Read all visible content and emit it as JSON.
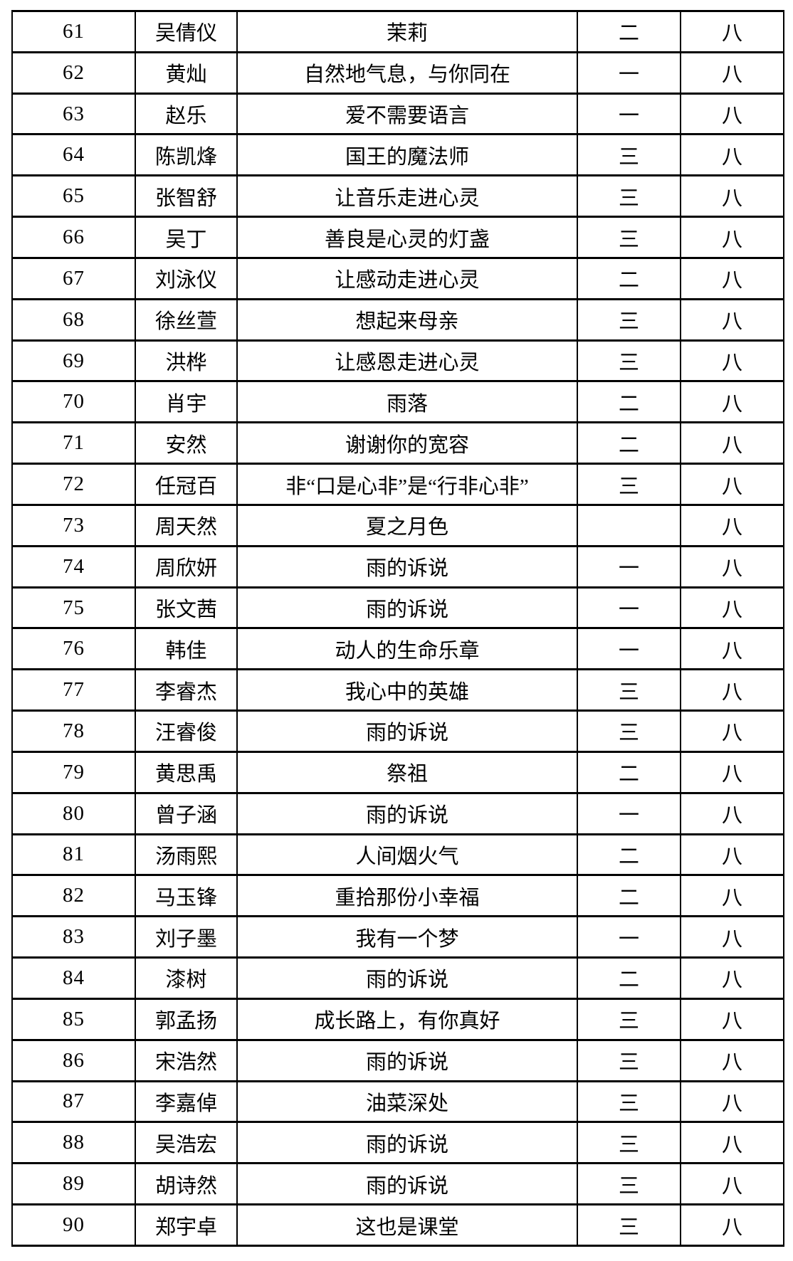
{
  "table": {
    "rows": [
      {
        "no": "61",
        "name": "吴倩仪",
        "title": "茉莉",
        "class_group": "二",
        "grade": "八"
      },
      {
        "no": "62",
        "name": "黄灿",
        "title": "自然地气息，与你同在",
        "class_group": "一",
        "grade": "八"
      },
      {
        "no": "63",
        "name": "赵乐",
        "title": "爱不需要语言",
        "class_group": "一",
        "grade": "八"
      },
      {
        "no": "64",
        "name": "陈凯烽",
        "title": "国王的魔法师",
        "class_group": "三",
        "grade": "八"
      },
      {
        "no": "65",
        "name": "张智舒",
        "title": "让音乐走进心灵",
        "class_group": "三",
        "grade": "八"
      },
      {
        "no": "66",
        "name": "吴丁",
        "title": "善良是心灵的灯盏",
        "class_group": "三",
        "grade": "八"
      },
      {
        "no": "67",
        "name": "刘泳仪",
        "title": "让感动走进心灵",
        "class_group": "二",
        "grade": "八"
      },
      {
        "no": "68",
        "name": "徐丝萱",
        "title": "想起来母亲",
        "class_group": "三",
        "grade": "八"
      },
      {
        "no": "69",
        "name": "洪桦",
        "title": "让感恩走进心灵",
        "class_group": "三",
        "grade": "八"
      },
      {
        "no": "70",
        "name": "肖宇",
        "title": "雨落",
        "class_group": "二",
        "grade": "八"
      },
      {
        "no": "71",
        "name": "安然",
        "title": "谢谢你的宽容",
        "class_group": "二",
        "grade": "八"
      },
      {
        "no": "72",
        "name": "任冠百",
        "title": "非“口是心非”是“行非心非”",
        "class_group": "三",
        "grade": "八"
      },
      {
        "no": "73",
        "name": "周天然",
        "title": "夏之月色",
        "class_group": "",
        "grade": "八"
      },
      {
        "no": "74",
        "name": "周欣妍",
        "title": "雨的诉说",
        "class_group": "一",
        "grade": "八"
      },
      {
        "no": "75",
        "name": "张文茜",
        "title": "雨的诉说",
        "class_group": "一",
        "grade": "八"
      },
      {
        "no": "76",
        "name": "韩佳",
        "title": "动人的生命乐章",
        "class_group": "一",
        "grade": "八"
      },
      {
        "no": "77",
        "name": "李睿杰",
        "title": "我心中的英雄",
        "class_group": "三",
        "grade": "八"
      },
      {
        "no": "78",
        "name": "汪睿俊",
        "title": "雨的诉说",
        "class_group": "三",
        "grade": "八"
      },
      {
        "no": "79",
        "name": "黄思禹",
        "title": "祭祖",
        "class_group": "二",
        "grade": "八"
      },
      {
        "no": "80",
        "name": "曾子涵",
        "title": "雨的诉说",
        "class_group": "一",
        "grade": "八"
      },
      {
        "no": "81",
        "name": "汤雨熙",
        "title": "人间烟火气",
        "class_group": "二",
        "grade": "八"
      },
      {
        "no": "82",
        "name": "马玉锋",
        "title": "重拾那份小幸福",
        "class_group": "二",
        "grade": "八"
      },
      {
        "no": "83",
        "name": "刘子墨",
        "title": "我有一个梦",
        "class_group": "一",
        "grade": "八"
      },
      {
        "no": "84",
        "name": "漆树",
        "title": "雨的诉说",
        "class_group": "二",
        "grade": "八"
      },
      {
        "no": "85",
        "name": "郭孟扬",
        "title": "成长路上，有你真好",
        "class_group": "三",
        "grade": "八"
      },
      {
        "no": "86",
        "name": "宋浩然",
        "title": "雨的诉说",
        "class_group": "三",
        "grade": "八"
      },
      {
        "no": "87",
        "name": "李嘉倬",
        "title": "油菜深处",
        "class_group": "三",
        "grade": "八"
      },
      {
        "no": "88",
        "name": "吴浩宏",
        "title": "雨的诉说",
        "class_group": "三",
        "grade": "八"
      },
      {
        "no": "89",
        "name": "胡诗然",
        "title": "雨的诉说",
        "class_group": "三",
        "grade": "八"
      },
      {
        "no": "90",
        "name": "郑宇卓",
        "title": "这也是课堂",
        "class_group": "三",
        "grade": "八"
      }
    ]
  }
}
